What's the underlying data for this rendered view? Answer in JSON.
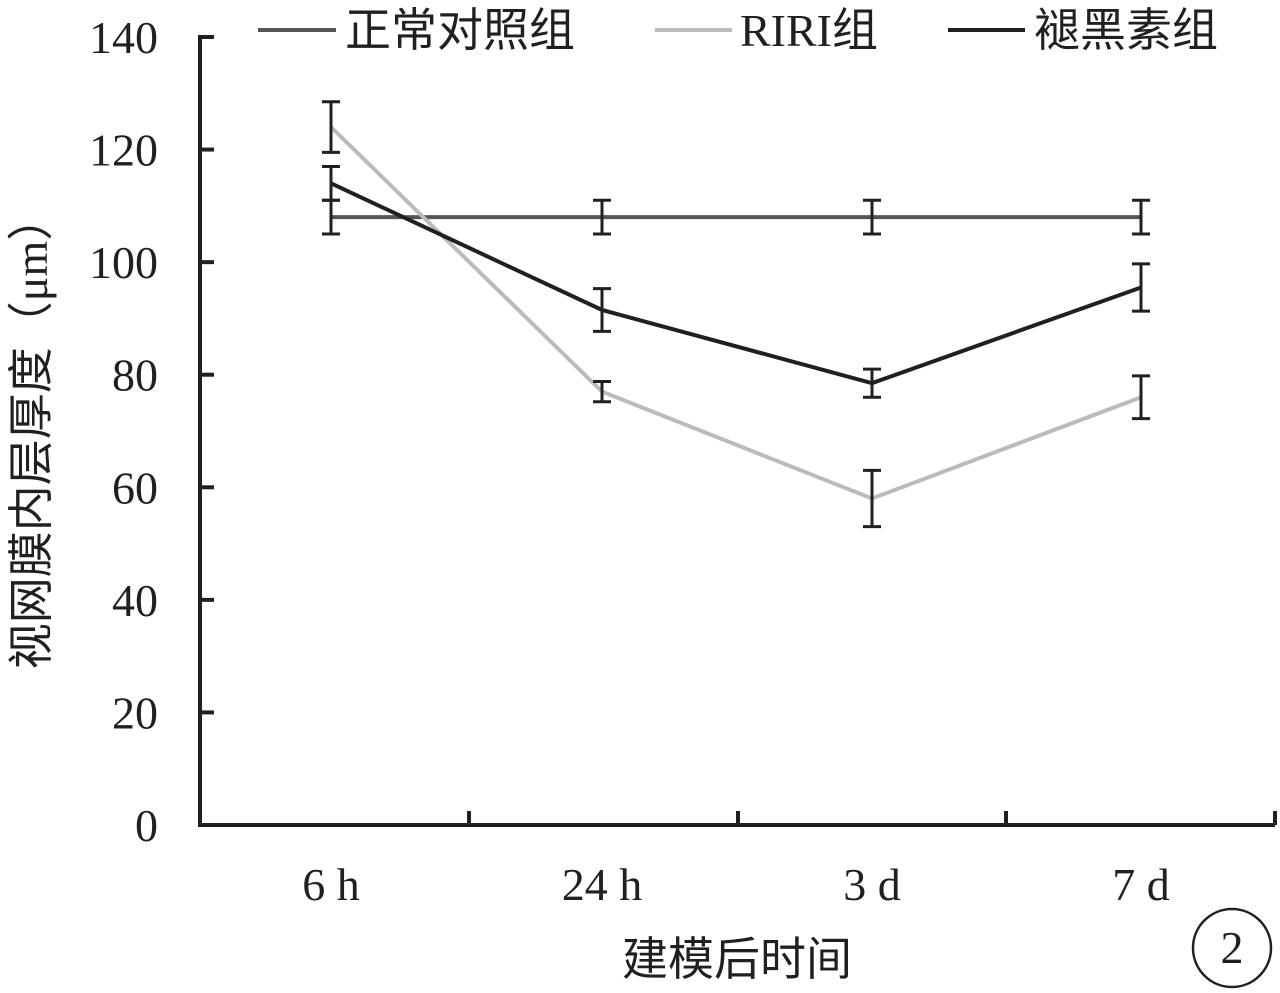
{
  "chart_data": {
    "type": "line",
    "categories": [
      "6 h",
      "24 h",
      "3 d",
      "7 d"
    ],
    "xlabel": "建模后时间",
    "ylabel": "视网膜内层厚度（μm）",
    "ylim": [
      0,
      140
    ],
    "yticks": [
      0,
      20,
      40,
      60,
      80,
      100,
      120,
      140
    ],
    "grid": false,
    "legend_position": "top",
    "series": [
      {
        "name": "正常对照组",
        "values": [
          108,
          108,
          108,
          108
        ],
        "errors": [
          3,
          3,
          3,
          3
        ],
        "color": "#555555"
      },
      {
        "name": "RIRI组",
        "values": [
          124,
          77,
          58,
          76
        ],
        "errors": [
          4.5,
          1.8,
          5,
          3.8
        ],
        "color": "#bbbbbb"
      },
      {
        "name": "褪黑素组",
        "values": [
          114,
          91.5,
          78.5,
          95.5
        ],
        "errors": [
          3,
          3.8,
          2.5,
          4.2
        ],
        "color": "#231f20"
      }
    ]
  },
  "panel_label": "2"
}
